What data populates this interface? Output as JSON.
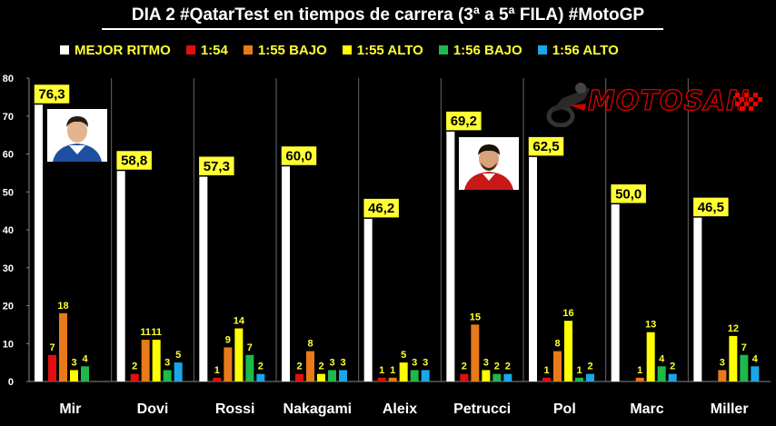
{
  "chart_data": {
    "type": "bar",
    "title": "DIA 2 #QatarTest en tiempos de carrera (3ª a 5ª FILA) #MotoGP",
    "categories": [
      "Mir",
      "Dovi",
      "Rossi",
      "Nakagami",
      "Aleix",
      "Petrucci",
      "Pol",
      "Marc",
      "Miller"
    ],
    "ylim": [
      0,
      80
    ],
    "yticks": [
      0,
      10,
      20,
      30,
      40,
      50,
      60,
      70,
      80
    ],
    "grid": false,
    "legend_position": "top",
    "series": [
      {
        "name": "MEJOR RITMO",
        "color": "#ffffff",
        "values": [
          76.3,
          58.8,
          57.3,
          60.0,
          46.2,
          69.2,
          62.5,
          50.0,
          46.5
        ],
        "labels": [
          "76,3",
          "58,8",
          "57,3",
          "60,0",
          "46,2",
          "69,2",
          "62,5",
          "50,0",
          "46,5"
        ]
      },
      {
        "name": "1:54",
        "color": "#e01010",
        "values": [
          7,
          2,
          1,
          2,
          1,
          2,
          1,
          0,
          0
        ],
        "labels": [
          "7",
          "2",
          "1",
          "2",
          "1",
          "2",
          "1",
          "",
          ""
        ]
      },
      {
        "name": "1:55 BAJO",
        "color": "#e87a1a",
        "values": [
          18,
          11,
          9,
          8,
          1,
          15,
          8,
          1,
          3
        ],
        "labels": [
          "18",
          "11",
          "9",
          "8",
          "1",
          "15",
          "8",
          "1",
          "3"
        ]
      },
      {
        "name": "1:55 ALTO",
        "color": "#ffff00",
        "values": [
          3,
          11,
          14,
          2,
          5,
          3,
          16,
          13,
          12
        ],
        "labels": [
          "3",
          "11",
          "14",
          "2",
          "5",
          "3",
          "16",
          "13",
          "12"
        ]
      },
      {
        "name": "1:56 BAJO",
        "color": "#1fb84a",
        "values": [
          4,
          3,
          7,
          3,
          3,
          2,
          1,
          4,
          7
        ],
        "labels": [
          "4",
          "3",
          "7",
          "3",
          "3",
          "2",
          "1",
          "4",
          "7"
        ]
      },
      {
        "name": "1:56 ALTO",
        "color": "#1aa6e8",
        "values": [
          0,
          5,
          2,
          3,
          3,
          2,
          2,
          2,
          4
        ],
        "labels": [
          "",
          "5",
          "2",
          "3",
          "3",
          "2",
          "2",
          "2",
          "4"
        ]
      }
    ]
  },
  "brand": {
    "logo_text": "MOTOSAN",
    "logo_color": "#e00000"
  },
  "photos": [
    {
      "rider": "Mir",
      "icon": "rider-portrait-icon"
    },
    {
      "rider": "Petrucci",
      "icon": "rider-portrait-icon"
    }
  ]
}
